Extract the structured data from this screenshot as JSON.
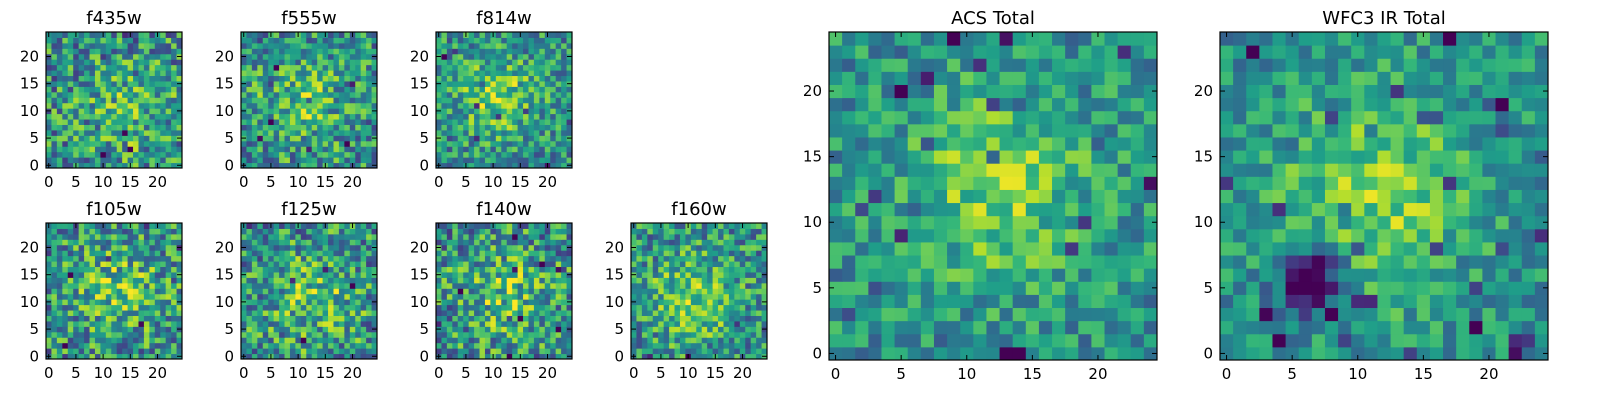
{
  "colormap": "viridis",
  "colors": {
    "dark": "#440154",
    "mid": "#21918c",
    "bright": "#fde725",
    "background": "#ffffff"
  },
  "chart_data": [
    {
      "type": "heatmap",
      "title": "f435w",
      "grid_size": 25,
      "xlim": [
        0,
        25
      ],
      "ylim": [
        0,
        25
      ],
      "x_ticks": [
        0,
        5,
        10,
        15,
        20
      ],
      "y_ticks": [
        0,
        5,
        10,
        15,
        20
      ],
      "blob": [
        0.62,
        0.42
      ],
      "blob_width": 0.22,
      "blob_peak": 0.18,
      "noise": 0.34,
      "floor": 0.05,
      "seed": 11
    },
    {
      "type": "heatmap",
      "title": "f555w",
      "grid_size": 25,
      "xlim": [
        0,
        25
      ],
      "ylim": [
        0,
        25
      ],
      "x_ticks": [
        0,
        5,
        10,
        15,
        20
      ],
      "y_ticks": [
        0,
        5,
        10,
        15,
        20
      ],
      "blob": [
        0.45,
        0.48
      ],
      "blob_width": 0.22,
      "blob_peak": 0.22,
      "noise": 0.32,
      "floor": 0.08,
      "seed": 23
    },
    {
      "type": "heatmap",
      "title": "f814w",
      "grid_size": 25,
      "xlim": [
        0,
        25
      ],
      "ylim": [
        0,
        25
      ],
      "x_ticks": [
        0,
        5,
        10,
        15,
        20
      ],
      "y_ticks": [
        0,
        5,
        10,
        15,
        20
      ],
      "blob": [
        0.45,
        0.52
      ],
      "blob_width": 0.2,
      "blob_peak": 0.3,
      "noise": 0.28,
      "floor": 0.1,
      "seed": 37
    },
    {
      "type": "heatmap",
      "title": "f105w",
      "grid_size": 25,
      "xlim": [
        0,
        25
      ],
      "ylim": [
        0,
        25
      ],
      "x_ticks": [
        0,
        5,
        10,
        15,
        20
      ],
      "y_ticks": [
        0,
        5,
        10,
        15,
        20
      ],
      "blob": [
        0.55,
        0.5
      ],
      "blob_width": 0.22,
      "blob_peak": 0.22,
      "noise": 0.34,
      "floor": 0.1,
      "seed": 41
    },
    {
      "type": "heatmap",
      "title": "f125w",
      "grid_size": 25,
      "xlim": [
        0,
        25
      ],
      "ylim": [
        0,
        25
      ],
      "x_ticks": [
        0,
        5,
        10,
        15,
        20
      ],
      "y_ticks": [
        0,
        5,
        10,
        15,
        20
      ],
      "blob": [
        0.55,
        0.45
      ],
      "blob_width": 0.22,
      "blob_peak": 0.22,
      "noise": 0.34,
      "floor": 0.1,
      "seed": 53
    },
    {
      "type": "heatmap",
      "title": "f140w",
      "grid_size": 25,
      "xlim": [
        0,
        25
      ],
      "ylim": [
        0,
        25
      ],
      "x_ticks": [
        0,
        5,
        10,
        15,
        20
      ],
      "y_ticks": [
        0,
        5,
        10,
        15,
        20
      ],
      "blob": [
        0.5,
        0.48
      ],
      "blob_width": 0.22,
      "blob_peak": 0.22,
      "noise": 0.34,
      "floor": 0.08,
      "seed": 67
    },
    {
      "type": "heatmap",
      "title": "f160w",
      "grid_size": 25,
      "xlim": [
        0,
        25
      ],
      "ylim": [
        0,
        25
      ],
      "x_ticks": [
        0,
        5,
        10,
        15,
        20
      ],
      "y_ticks": [
        0,
        5,
        10,
        15,
        20
      ],
      "blob": [
        0.45,
        0.45
      ],
      "blob_width": 0.22,
      "blob_peak": 0.28,
      "noise": 0.3,
      "floor": 0.1,
      "seed": 79
    },
    {
      "type": "heatmap",
      "title": "ACS Total",
      "grid_size": 25,
      "xlim": [
        0,
        25
      ],
      "ylim": [
        0,
        25
      ],
      "x_ticks": [
        0,
        5,
        10,
        15,
        20
      ],
      "y_ticks": [
        0,
        5,
        10,
        15,
        20
      ],
      "blob": [
        0.52,
        0.52
      ],
      "blob_width": 0.2,
      "blob_peak": 0.3,
      "noise": 0.22,
      "floor": 0.2,
      "seed": 97
    },
    {
      "type": "heatmap",
      "title": "WFC3 IR Total",
      "grid_size": 25,
      "xlim": [
        0,
        25
      ],
      "ylim": [
        0,
        25
      ],
      "x_ticks": [
        0,
        5,
        10,
        15,
        20
      ],
      "y_ticks": [
        0,
        5,
        10,
        15,
        20
      ],
      "blob": [
        0.48,
        0.5
      ],
      "blob_width": 0.22,
      "blob_peak": 0.3,
      "dark_spot": [
        0.28,
        0.24
      ],
      "dark_width": 0.07,
      "dark_depth": 0.7,
      "noise": 0.2,
      "floor": 0.25,
      "seed": 131
    }
  ]
}
